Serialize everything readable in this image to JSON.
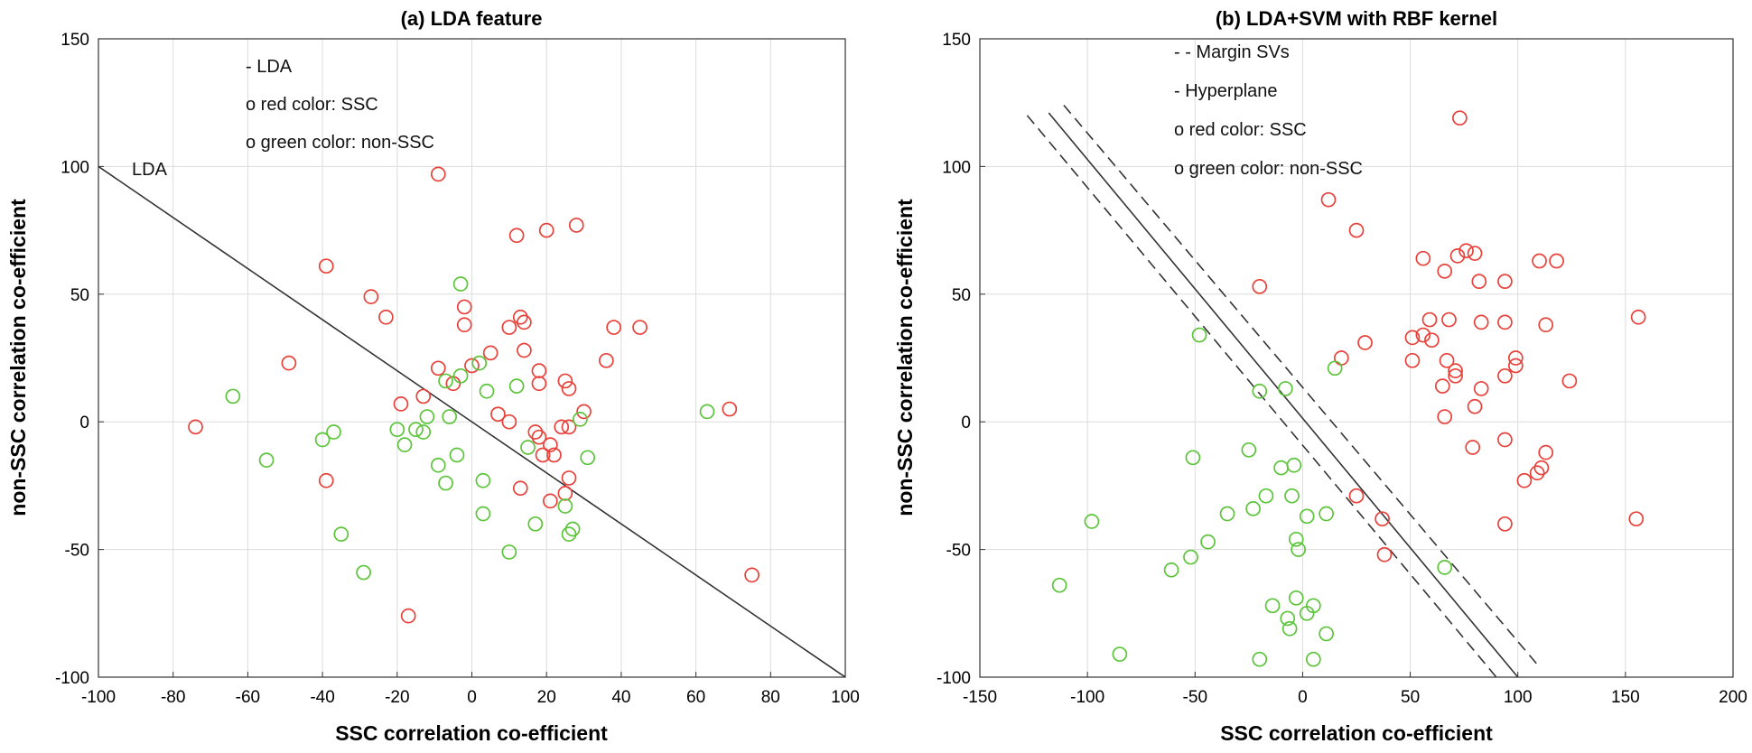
{
  "chart_data": [
    {
      "type": "scatter",
      "title": "(a) LDA feature",
      "xlabel": "SSC correlation co-efficient",
      "ylabel": "non-SSC correlation co-efficient",
      "xlim": [
        -100,
        100
      ],
      "ylim": [
        -100,
        150
      ],
      "xticks": [
        -100,
        -80,
        -60,
        -40,
        -20,
        0,
        20,
        40,
        60,
        80,
        100
      ],
      "yticks": [
        -100,
        -50,
        0,
        50,
        100,
        150
      ],
      "grid": true,
      "legend_lines": [
        "- LDA",
        "o red color: SSC",
        "o green color: non-SSC"
      ],
      "line_label": "LDA",
      "colors": {
        "ssc": "#e8413a",
        "nonssc": "#5cc43a",
        "line": "#333333"
      },
      "lines": [
        {
          "name": "LDA",
          "style": "solid",
          "x": [
            -100,
            100
          ],
          "y": [
            100,
            -100
          ]
        }
      ],
      "series": [
        {
          "name": "SSC",
          "color": "red",
          "points": [
            [
              -74,
              -2
            ],
            [
              -49,
              23
            ],
            [
              -39,
              61
            ],
            [
              -39,
              -23
            ],
            [
              -27,
              49
            ],
            [
              -23,
              41
            ],
            [
              -19,
              7
            ],
            [
              -17,
              -76
            ],
            [
              -13,
              10
            ],
            [
              -9,
              21
            ],
            [
              -9,
              97
            ],
            [
              -5,
              15
            ],
            [
              -2,
              45
            ],
            [
              -2,
              38
            ],
            [
              0,
              22
            ],
            [
              5,
              27
            ],
            [
              7,
              3
            ],
            [
              10,
              0
            ],
            [
              10,
              37
            ],
            [
              12,
              73
            ],
            [
              13,
              41
            ],
            [
              13,
              -26
            ],
            [
              14,
              28
            ],
            [
              14,
              39
            ],
            [
              17,
              -4
            ],
            [
              18,
              20
            ],
            [
              18,
              15
            ],
            [
              18,
              -6
            ],
            [
              19,
              -13
            ],
            [
              20,
              75
            ],
            [
              21,
              -9
            ],
            [
              21,
              -31
            ],
            [
              22,
              -13
            ],
            [
              24,
              -2
            ],
            [
              25,
              16
            ],
            [
              25,
              -28
            ],
            [
              26,
              13
            ],
            [
              26,
              -22
            ],
            [
              26,
              -2
            ],
            [
              28,
              77
            ],
            [
              30,
              4
            ],
            [
              36,
              24
            ],
            [
              38,
              37
            ],
            [
              45,
              37
            ],
            [
              69,
              5
            ],
            [
              75,
              -60
            ]
          ]
        },
        {
          "name": "non-SSC",
          "color": "green",
          "points": [
            [
              -64,
              10
            ],
            [
              -55,
              -15
            ],
            [
              -40,
              -7
            ],
            [
              -37,
              -4
            ],
            [
              -35,
              -44
            ],
            [
              -29,
              -59
            ],
            [
              -20,
              -3
            ],
            [
              -18,
              -9
            ],
            [
              -15,
              -3
            ],
            [
              -13,
              -4
            ],
            [
              -12,
              2
            ],
            [
              -9,
              -17
            ],
            [
              -7,
              -24
            ],
            [
              -7,
              16
            ],
            [
              -6,
              2
            ],
            [
              -4,
              -13
            ],
            [
              -3,
              18
            ],
            [
              -3,
              54
            ],
            [
              2,
              23
            ],
            [
              3,
              -23
            ],
            [
              3,
              -36
            ],
            [
              4,
              12
            ],
            [
              10,
              -51
            ],
            [
              12,
              14
            ],
            [
              15,
              -10
            ],
            [
              17,
              -40
            ],
            [
              25,
              -33
            ],
            [
              26,
              -44
            ],
            [
              27,
              -42
            ],
            [
              29,
              1
            ],
            [
              31,
              -14
            ],
            [
              63,
              4
            ]
          ]
        }
      ]
    },
    {
      "type": "scatter",
      "title": "(b) LDA+SVM with RBF kernel",
      "xlabel": "SSC correlation co-efficient",
      "ylabel": "non-SSC correlation co-efficient",
      "xlim": [
        -150,
        200
      ],
      "ylim": [
        -100,
        150
      ],
      "xticks": [
        -150,
        -100,
        -50,
        0,
        50,
        100,
        150,
        200
      ],
      "yticks": [
        -100,
        -50,
        0,
        50,
        100,
        150
      ],
      "grid": true,
      "legend_lines": [
        "- - Margin SVs",
        "-  Hyperplane",
        "o  red color: SSC",
        "o  green color: non-SSC"
      ],
      "colors": {
        "ssc": "#e8413a",
        "nonssc": "#5cc43a",
        "line": "#333333"
      },
      "lines": [
        {
          "name": "Hyperplane",
          "style": "solid",
          "x": [
            -118,
            100
          ],
          "y": [
            121,
            -100
          ]
        },
        {
          "name": "Margin SV upper",
          "style": "dashed",
          "x": [
            -111,
            110
          ],
          "y": [
            124,
            -96
          ]
        },
        {
          "name": "Margin SV lower",
          "style": "dashed",
          "x": [
            -128,
            90
          ],
          "y": [
            120,
            -100
          ]
        }
      ],
      "series": [
        {
          "name": "SSC",
          "color": "red",
          "points": [
            [
              -20,
              53
            ],
            [
              12,
              87
            ],
            [
              18,
              25
            ],
            [
              25,
              75
            ],
            [
              25,
              -29
            ],
            [
              29,
              31
            ],
            [
              37,
              -38
            ],
            [
              38,
              -52
            ],
            [
              51,
              24
            ],
            [
              51,
              33
            ],
            [
              56,
              34
            ],
            [
              56,
              64
            ],
            [
              59,
              40
            ],
            [
              60,
              32
            ],
            [
              65,
              14
            ],
            [
              66,
              59
            ],
            [
              66,
              2
            ],
            [
              67,
              24
            ],
            [
              68,
              40
            ],
            [
              71,
              18
            ],
            [
              71,
              20
            ],
            [
              72,
              65
            ],
            [
              73,
              119
            ],
            [
              76,
              67
            ],
            [
              79,
              -10
            ],
            [
              80,
              6
            ],
            [
              80,
              66
            ],
            [
              82,
              55
            ],
            [
              83,
              39
            ],
            [
              83,
              13
            ],
            [
              94,
              -40
            ],
            [
              94,
              -7
            ],
            [
              94,
              18
            ],
            [
              94,
              39
            ],
            [
              94,
              55
            ],
            [
              99,
              22
            ],
            [
              99,
              25
            ],
            [
              103,
              -23
            ],
            [
              109,
              -20
            ],
            [
              110,
              63
            ],
            [
              111,
              -18
            ],
            [
              113,
              -12
            ],
            [
              113,
              38
            ],
            [
              118,
              63
            ],
            [
              124,
              16
            ],
            [
              155,
              -38
            ],
            [
              156,
              41
            ]
          ]
        },
        {
          "name": "non-SSC",
          "color": "green",
          "points": [
            [
              -113,
              -64
            ],
            [
              -98,
              -39
            ],
            [
              -85,
              -91
            ],
            [
              -61,
              -58
            ],
            [
              -52,
              -53
            ],
            [
              -51,
              -14
            ],
            [
              -48,
              34
            ],
            [
              -44,
              -47
            ],
            [
              -35,
              -36
            ],
            [
              -25,
              -11
            ],
            [
              -23,
              -34
            ],
            [
              -20,
              12
            ],
            [
              -20,
              -93
            ],
            [
              -17,
              -29
            ],
            [
              -14,
              -72
            ],
            [
              -10,
              -18
            ],
            [
              -8,
              13
            ],
            [
              -7,
              -77
            ],
            [
              -6,
              -81
            ],
            [
              -5,
              -29
            ],
            [
              -4,
              -17
            ],
            [
              -3,
              -69
            ],
            [
              -3,
              -46
            ],
            [
              -2,
              -50
            ],
            [
              2,
              -37
            ],
            [
              2,
              -75
            ],
            [
              5,
              -72
            ],
            [
              5,
              -93
            ],
            [
              11,
              -36
            ],
            [
              11,
              -83
            ],
            [
              15,
              21
            ],
            [
              66,
              -57
            ]
          ]
        }
      ]
    }
  ]
}
